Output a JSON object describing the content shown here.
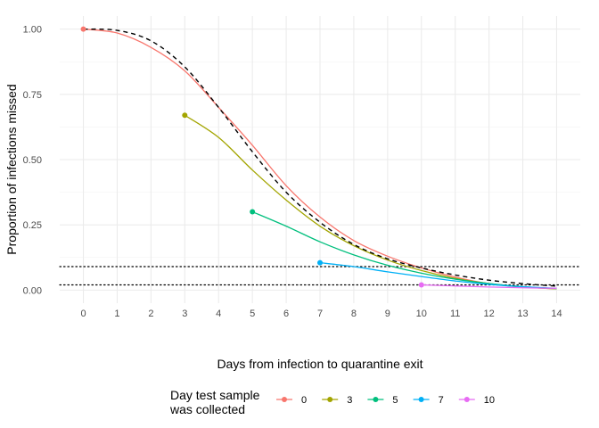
{
  "chart_data": {
    "type": "line",
    "title": "",
    "xlabel": "Days from infection to quarantine exit",
    "ylabel": "Proportion of infections missed",
    "xlim": [
      -0.7,
      14.7
    ],
    "ylim": [
      -0.05,
      1.05
    ],
    "x_ticks": [
      0,
      1,
      2,
      3,
      4,
      5,
      6,
      7,
      8,
      9,
      10,
      11,
      12,
      13,
      14
    ],
    "x_tick_labels": [
      "0",
      "1",
      "2",
      "3",
      "4",
      "5",
      "6",
      "7",
      "8",
      "9",
      "10",
      "11",
      "12",
      "13",
      "14"
    ],
    "y_ticks": [
      0,
      0.25,
      0.5,
      0.75,
      1.0
    ],
    "y_tick_labels": [
      "0.00",
      "0.25",
      "0.50",
      "0.75",
      "1.00"
    ],
    "grid": true,
    "legend_position": "bottom",
    "legend_title_lines": [
      "Day test sample",
      "was collected"
    ],
    "reference_lines": [
      {
        "y": 0.09,
        "style": "dotted",
        "color": "#000000"
      },
      {
        "y": 0.02,
        "style": "dotted",
        "color": "#000000"
      }
    ],
    "no_test_curve": {
      "color": "#000000",
      "style": "dashed",
      "x": [
        0,
        1,
        2,
        3,
        4,
        5,
        6,
        7,
        8,
        9,
        10,
        11,
        12,
        13,
        14
      ],
      "y": [
        1.0,
        0.995,
        0.955,
        0.855,
        0.7,
        0.53,
        0.375,
        0.26,
        0.175,
        0.12,
        0.085,
        0.058,
        0.038,
        0.025,
        0.015
      ]
    },
    "series": [
      {
        "name": "0",
        "color": "#F8766D",
        "x": [
          0,
          1,
          2,
          3,
          4,
          5,
          6,
          7,
          8,
          9,
          10,
          11,
          12,
          13,
          14
        ],
        "y": [
          1.0,
          0.985,
          0.93,
          0.84,
          0.7,
          0.555,
          0.4,
          0.28,
          0.19,
          0.13,
          0.085,
          0.05,
          0.025,
          0.012,
          0.005
        ]
      },
      {
        "name": "3",
        "color": "#A3A500",
        "x": [
          3,
          4,
          5,
          6,
          7,
          8,
          9,
          10,
          11,
          12,
          13,
          14
        ],
        "y": [
          0.67,
          0.585,
          0.46,
          0.345,
          0.245,
          0.17,
          0.115,
          0.075,
          0.045,
          0.025,
          0.012,
          0.005
        ]
      },
      {
        "name": "5",
        "color": "#00BF7D",
        "x": [
          5,
          6,
          7,
          8,
          9,
          10,
          11,
          12,
          13,
          14
        ],
        "y": [
          0.3,
          0.245,
          0.185,
          0.135,
          0.095,
          0.065,
          0.042,
          0.025,
          0.013,
          0.006
        ]
      },
      {
        "name": "7",
        "color": "#00B0F6",
        "x": [
          7,
          8,
          9,
          10,
          11,
          12,
          13,
          14
        ],
        "y": [
          0.105,
          0.09,
          0.07,
          0.052,
          0.035,
          0.022,
          0.013,
          0.007
        ]
      },
      {
        "name": "10",
        "color": "#E76BF3",
        "x": [
          10,
          11,
          12,
          13,
          14
        ],
        "y": [
          0.02,
          0.016,
          0.012,
          0.009,
          0.007
        ]
      }
    ]
  }
}
